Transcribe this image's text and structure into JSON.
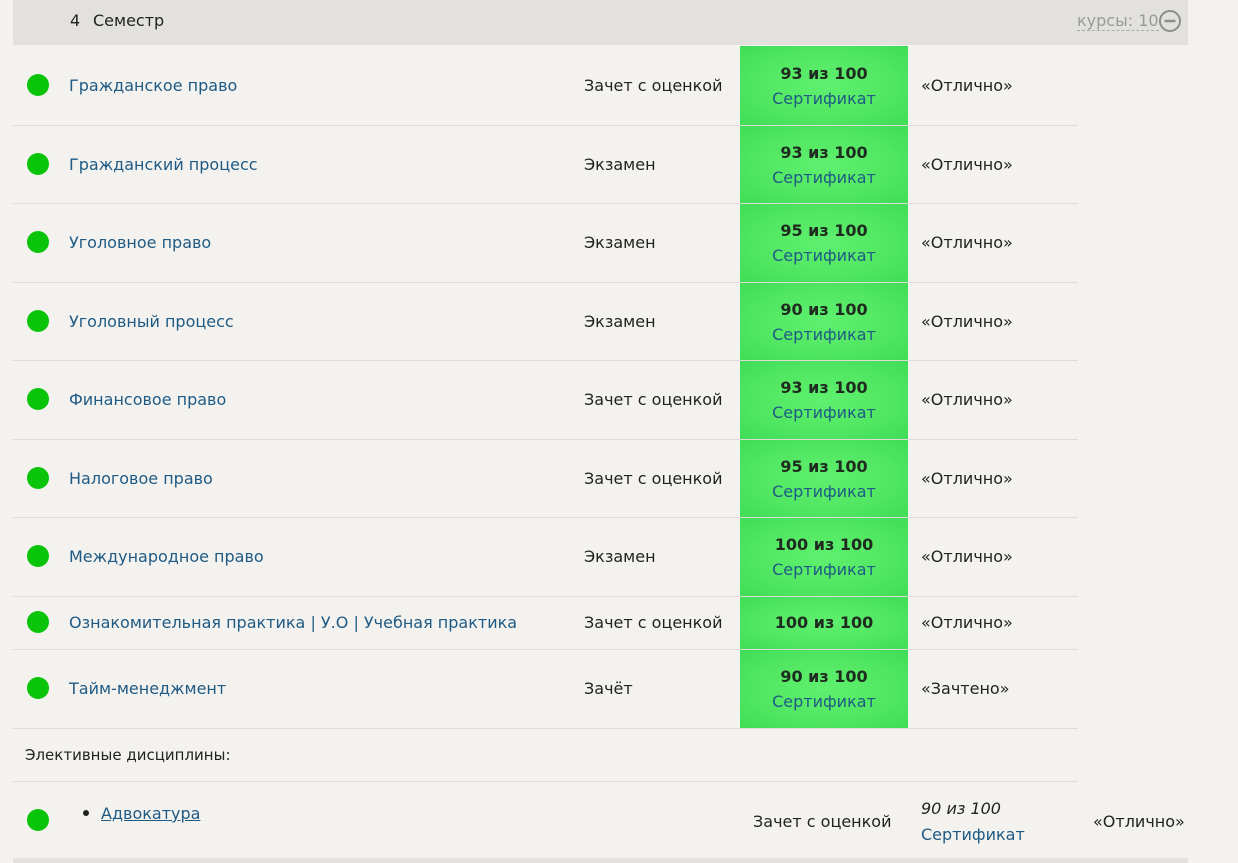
{
  "semester": {
    "number": "4",
    "title": "Семестр",
    "courses_count": "курсы: 10",
    "collapse_icon": "minus-circle-icon"
  },
  "colors": {
    "status_passed": "#0ac40a",
    "score_bg": "#52e763",
    "link": "#1f5a85"
  },
  "courses": [
    {
      "name": "Гражданское право",
      "exam_type": "Зачет с оценкой",
      "score": "93 из 100",
      "certificate": "Сертификат",
      "grade": "«Отлично»"
    },
    {
      "name": "Гражданский процесс",
      "exam_type": "Экзамен",
      "score": "93 из 100",
      "certificate": "Сертификат",
      "grade": "«Отлично»"
    },
    {
      "name": "Уголовное право",
      "exam_type": "Экзамен",
      "score": "95 из 100",
      "certificate": "Сертификат",
      "grade": "«Отлично»"
    },
    {
      "name": "Уголовный процесс",
      "exam_type": "Экзамен",
      "score": "90 из 100",
      "certificate": "Сертификат",
      "grade": "«Отлично»"
    },
    {
      "name": "Финансовое право",
      "exam_type": "Зачет с оценкой",
      "score": "93 из 100",
      "certificate": "Сертификат",
      "grade": "«Отлично»"
    },
    {
      "name": "Налоговое право",
      "exam_type": "Зачет с оценкой",
      "score": "95 из 100",
      "certificate": "Сертификат",
      "grade": "«Отлично»"
    },
    {
      "name": "Международное право",
      "exam_type": "Экзамен",
      "score": "100 из 100",
      "certificate": "Сертификат",
      "grade": "«Отлично»"
    },
    {
      "name": "Ознакомительная практика | У.О | Учебная практика",
      "exam_type": "Зачет с оценкой",
      "score": "100 из 100",
      "certificate": "",
      "grade": "«Отлично»"
    },
    {
      "name": "Тайм-менеджмент",
      "exam_type": "Зачёт",
      "score": "90 из 100",
      "certificate": "Сертификат",
      "grade": "«Зачтено»"
    }
  ],
  "electives": {
    "label": "Элективные дисциплины:",
    "items": [
      {
        "name": "Адвокатура",
        "exam_type": "Зачет с оценкой",
        "score": "90 из 100",
        "certificate": "Сертификат",
        "grade": "«Отлично»"
      }
    ]
  }
}
